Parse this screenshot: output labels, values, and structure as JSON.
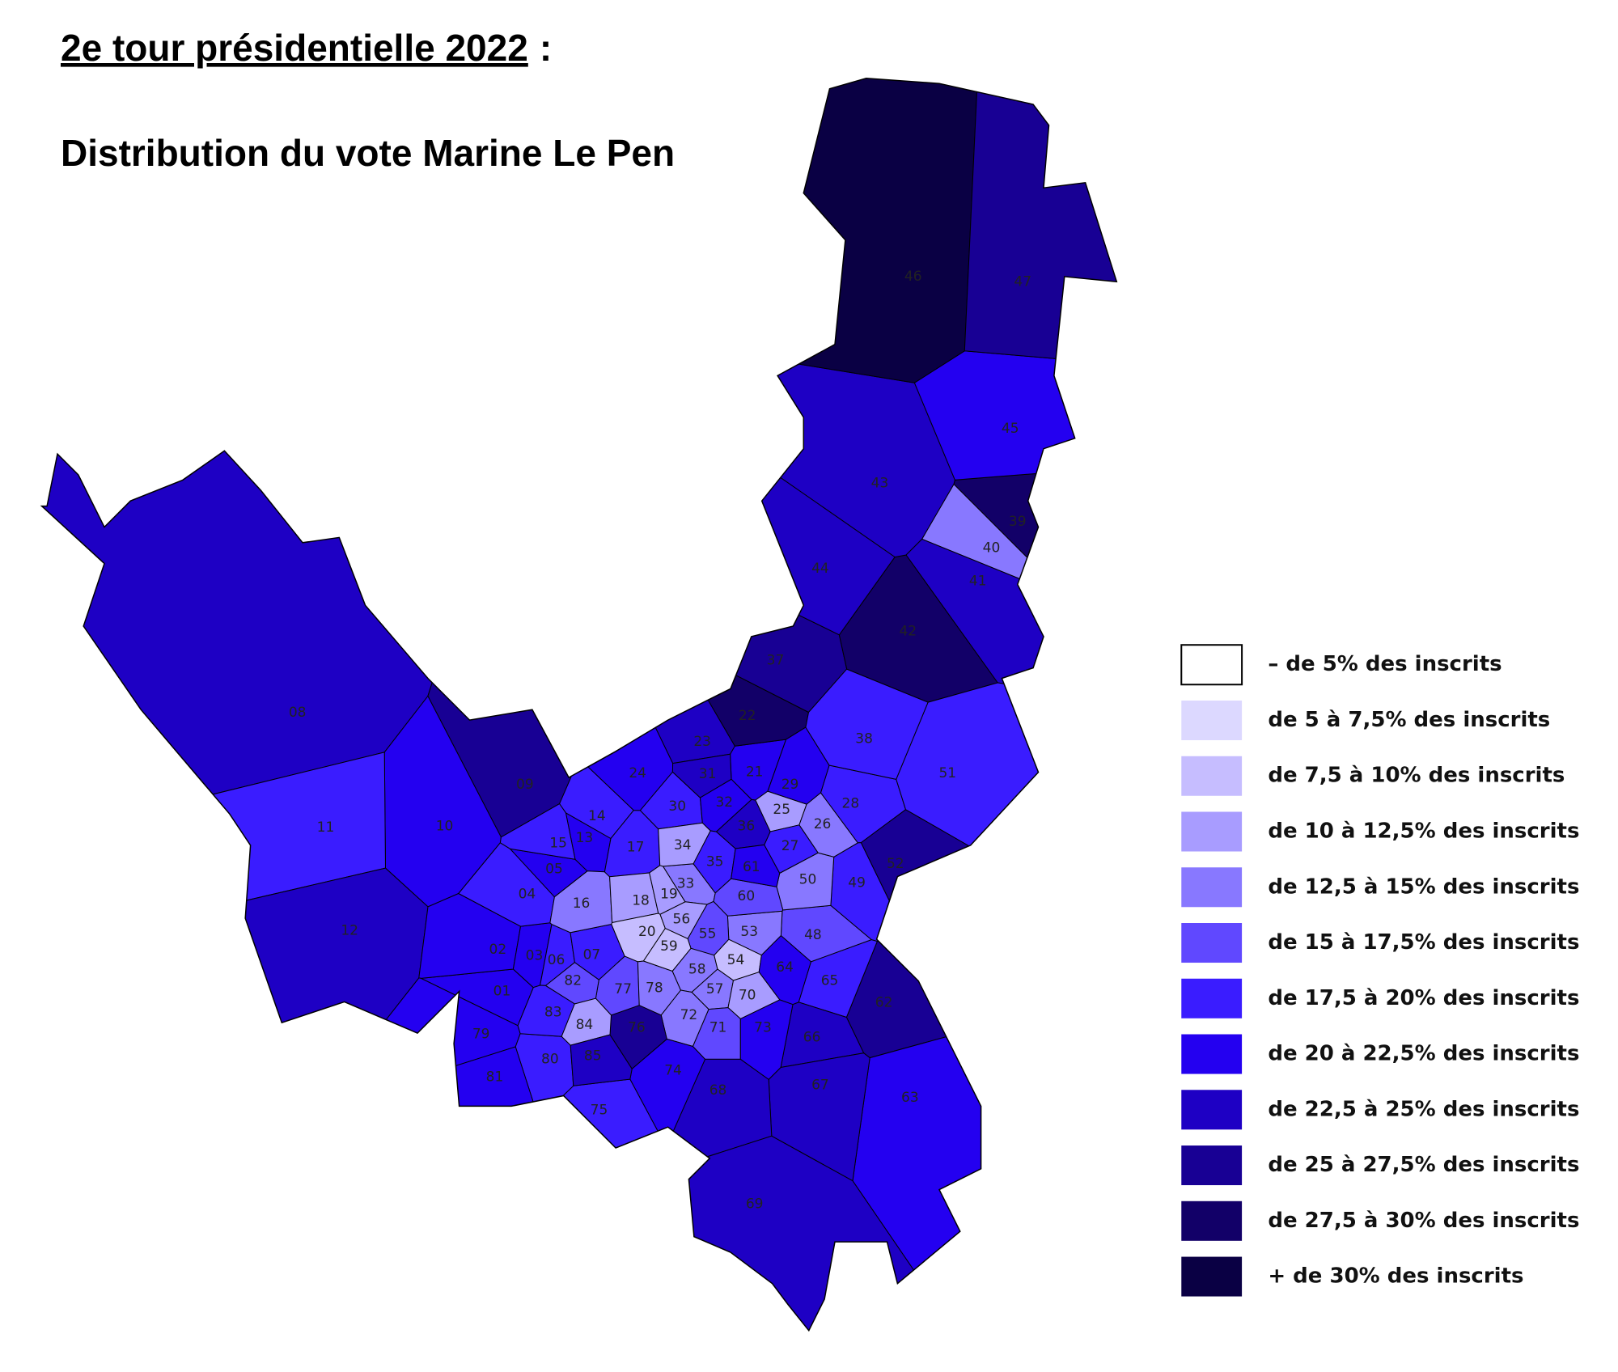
{
  "header": {
    "title": "2e tour présidentielle 2022",
    "title_suffix": ":",
    "subtitle": "Distribution du vote Marine Le Pen"
  },
  "legend": {
    "items": [
      {
        "label": "– de 5% des inscrits",
        "color": "#ffffff"
      },
      {
        "label": "de 5 à 7,5% des inscrits",
        "color": "#dcd8ff"
      },
      {
        "label": "de 7,5 à 10% des inscrits",
        "color": "#c6bdff"
      },
      {
        "label": "de 10 à 12,5% des inscrits",
        "color": "#a89cff"
      },
      {
        "label": "de 12,5 à 15% des inscrits",
        "color": "#8878ff"
      },
      {
        "label": "de 15 à 17,5% des inscrits",
        "color": "#6048ff"
      },
      {
        "label": "de 17,5 à 20% des inscrits",
        "color": "#3a1cff"
      },
      {
        "label": "de 20 à 22,5% des inscrits",
        "color": "#2400f0"
      },
      {
        "label": "de 22,5 à 25% des inscrits",
        "color": "#1e00c4"
      },
      {
        "label": "de 25 à 27,5% des inscrits",
        "color": "#180094"
      },
      {
        "label": "de 27,5 à 30% des inscrits",
        "color": "#120068"
      },
      {
        "label": "+ de 30% des inscrits",
        "color": "#0a0044"
      }
    ]
  },
  "map": {
    "regions": [
      {
        "label": "08",
        "color": "#1e00c4"
      },
      {
        "label": "09",
        "color": "#180094"
      },
      {
        "label": "10",
        "color": "#2400f0"
      },
      {
        "label": "11",
        "color": "#3a1cff"
      },
      {
        "label": "12",
        "color": "#1e00c4"
      },
      {
        "label": "01",
        "color": "#2400f0"
      },
      {
        "label": "02",
        "color": "#2400f0"
      },
      {
        "label": "03",
        "color": "#2400f0"
      },
      {
        "label": "04",
        "color": "#3a1cff"
      },
      {
        "label": "05",
        "color": "#2400f0"
      },
      {
        "label": "06",
        "color": "#3a1cff"
      },
      {
        "label": "07",
        "color": "#3a1cff"
      },
      {
        "label": "13",
        "color": "#2400f0"
      },
      {
        "label": "14",
        "color": "#3a1cff"
      },
      {
        "label": "15",
        "color": "#3a1cff"
      },
      {
        "label": "16",
        "color": "#8878ff"
      },
      {
        "label": "17",
        "color": "#3a1cff"
      },
      {
        "label": "18",
        "color": "#a89cff"
      },
      {
        "label": "19",
        "color": "#a89cff"
      },
      {
        "label": "20",
        "color": "#c6bdff"
      },
      {
        "label": "21",
        "color": "#2400f0"
      },
      {
        "label": "22",
        "color": "#120068"
      },
      {
        "label": "23",
        "color": "#1e00c4"
      },
      {
        "label": "24",
        "color": "#2400f0"
      },
      {
        "label": "25",
        "color": "#a89cff"
      },
      {
        "label": "26",
        "color": "#8878ff"
      },
      {
        "label": "27",
        "color": "#3a1cff"
      },
      {
        "label": "28",
        "color": "#3a1cff"
      },
      {
        "label": "29",
        "color": "#2400f0"
      },
      {
        "label": "30",
        "color": "#3a1cff"
      },
      {
        "label": "31",
        "color": "#1e00c4"
      },
      {
        "label": "32",
        "color": "#2400f0"
      },
      {
        "label": "33",
        "color": "#8878ff"
      },
      {
        "label": "34",
        "color": "#a89cff"
      },
      {
        "label": "35",
        "color": "#3a1cff"
      },
      {
        "label": "36",
        "color": "#1e00c4"
      },
      {
        "label": "37",
        "color": "#180094"
      },
      {
        "label": "38",
        "color": "#3a1cff"
      },
      {
        "label": "39",
        "color": "#120068"
      },
      {
        "label": "40",
        "color": "#8878ff"
      },
      {
        "label": "41",
        "color": "#1e00c4"
      },
      {
        "label": "42",
        "color": "#120068"
      },
      {
        "label": "43",
        "color": "#1e00c4"
      },
      {
        "label": "44",
        "color": "#1e00c4"
      },
      {
        "label": "45",
        "color": "#2400f0"
      },
      {
        "label": "46",
        "color": "#0a0044"
      },
      {
        "label": "47",
        "color": "#180094"
      },
      {
        "label": "48",
        "color": "#6048ff"
      },
      {
        "label": "49",
        "color": "#3a1cff"
      },
      {
        "label": "50",
        "color": "#8878ff"
      },
      {
        "label": "51",
        "color": "#3a1cff"
      },
      {
        "label": "52",
        "color": "#180094"
      },
      {
        "label": "53",
        "color": "#8878ff"
      },
      {
        "label": "54",
        "color": "#c6bdff"
      },
      {
        "label": "55",
        "color": "#6048ff"
      },
      {
        "label": "56",
        "color": "#a89cff"
      },
      {
        "label": "57",
        "color": "#8878ff"
      },
      {
        "label": "58",
        "color": "#8878ff"
      },
      {
        "label": "59",
        "color": "#c6bdff"
      },
      {
        "label": "60",
        "color": "#6048ff"
      },
      {
        "label": "61",
        "color": "#2400f0"
      },
      {
        "label": "62",
        "color": "#180094"
      },
      {
        "label": "63",
        "color": "#2400f0"
      },
      {
        "label": "64",
        "color": "#2400f0"
      },
      {
        "label": "65",
        "color": "#3a1cff"
      },
      {
        "label": "66",
        "color": "#1e00c4"
      },
      {
        "label": "67",
        "color": "#1e00c4"
      },
      {
        "label": "68",
        "color": "#1e00c4"
      },
      {
        "label": "69",
        "color": "#1e00c4"
      },
      {
        "label": "70",
        "color": "#a89cff"
      },
      {
        "label": "71",
        "color": "#6048ff"
      },
      {
        "label": "72",
        "color": "#8878ff"
      },
      {
        "label": "73",
        "color": "#2400f0"
      },
      {
        "label": "74",
        "color": "#2400f0"
      },
      {
        "label": "75",
        "color": "#3a1cff"
      },
      {
        "label": "76",
        "color": "#180094"
      },
      {
        "label": "77",
        "color": "#6048ff"
      },
      {
        "label": "78",
        "color": "#8878ff"
      },
      {
        "label": "79",
        "color": "#2400f0"
      },
      {
        "label": "80",
        "color": "#3a1cff"
      },
      {
        "label": "81",
        "color": "#2400f0"
      },
      {
        "label": "82",
        "color": "#6048ff"
      },
      {
        "label": "83",
        "color": "#3a1cff"
      },
      {
        "label": "84",
        "color": "#a89cff"
      },
      {
        "label": "85",
        "color": "#1e00c4"
      }
    ]
  }
}
